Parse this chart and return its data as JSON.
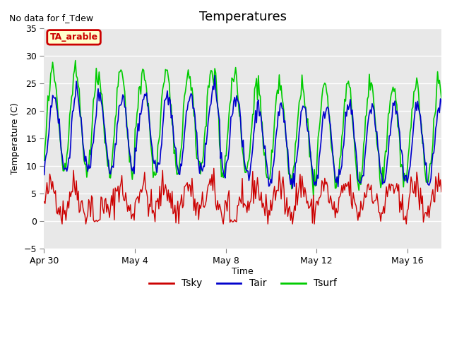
{
  "title": "Temperatures",
  "xlabel": "Time",
  "ylabel": "Temperature (C)",
  "top_left_text": "No data for f_Tdew",
  "annotation_text": "TA_arable",
  "ylim": [
    -5,
    35
  ],
  "yticks": [
    -5,
    0,
    5,
    10,
    15,
    20,
    25,
    30,
    35
  ],
  "xtick_labels": [
    "Apr 30",
    "May 4",
    "May 8",
    "May 12",
    "May 16"
  ],
  "xtick_pos": [
    0,
    4,
    8,
    12,
    16
  ],
  "xlim": [
    0,
    17.5
  ],
  "bg_color": "#e8e8e8",
  "fig_color": "#ffffff",
  "line_tsky_color": "#cc0000",
  "line_tair_color": "#0000cc",
  "line_tsurf_color": "#00cc00",
  "legend_tsky": "Tsky",
  "legend_tair": "Tair",
  "legend_tsurf": "Tsurf"
}
